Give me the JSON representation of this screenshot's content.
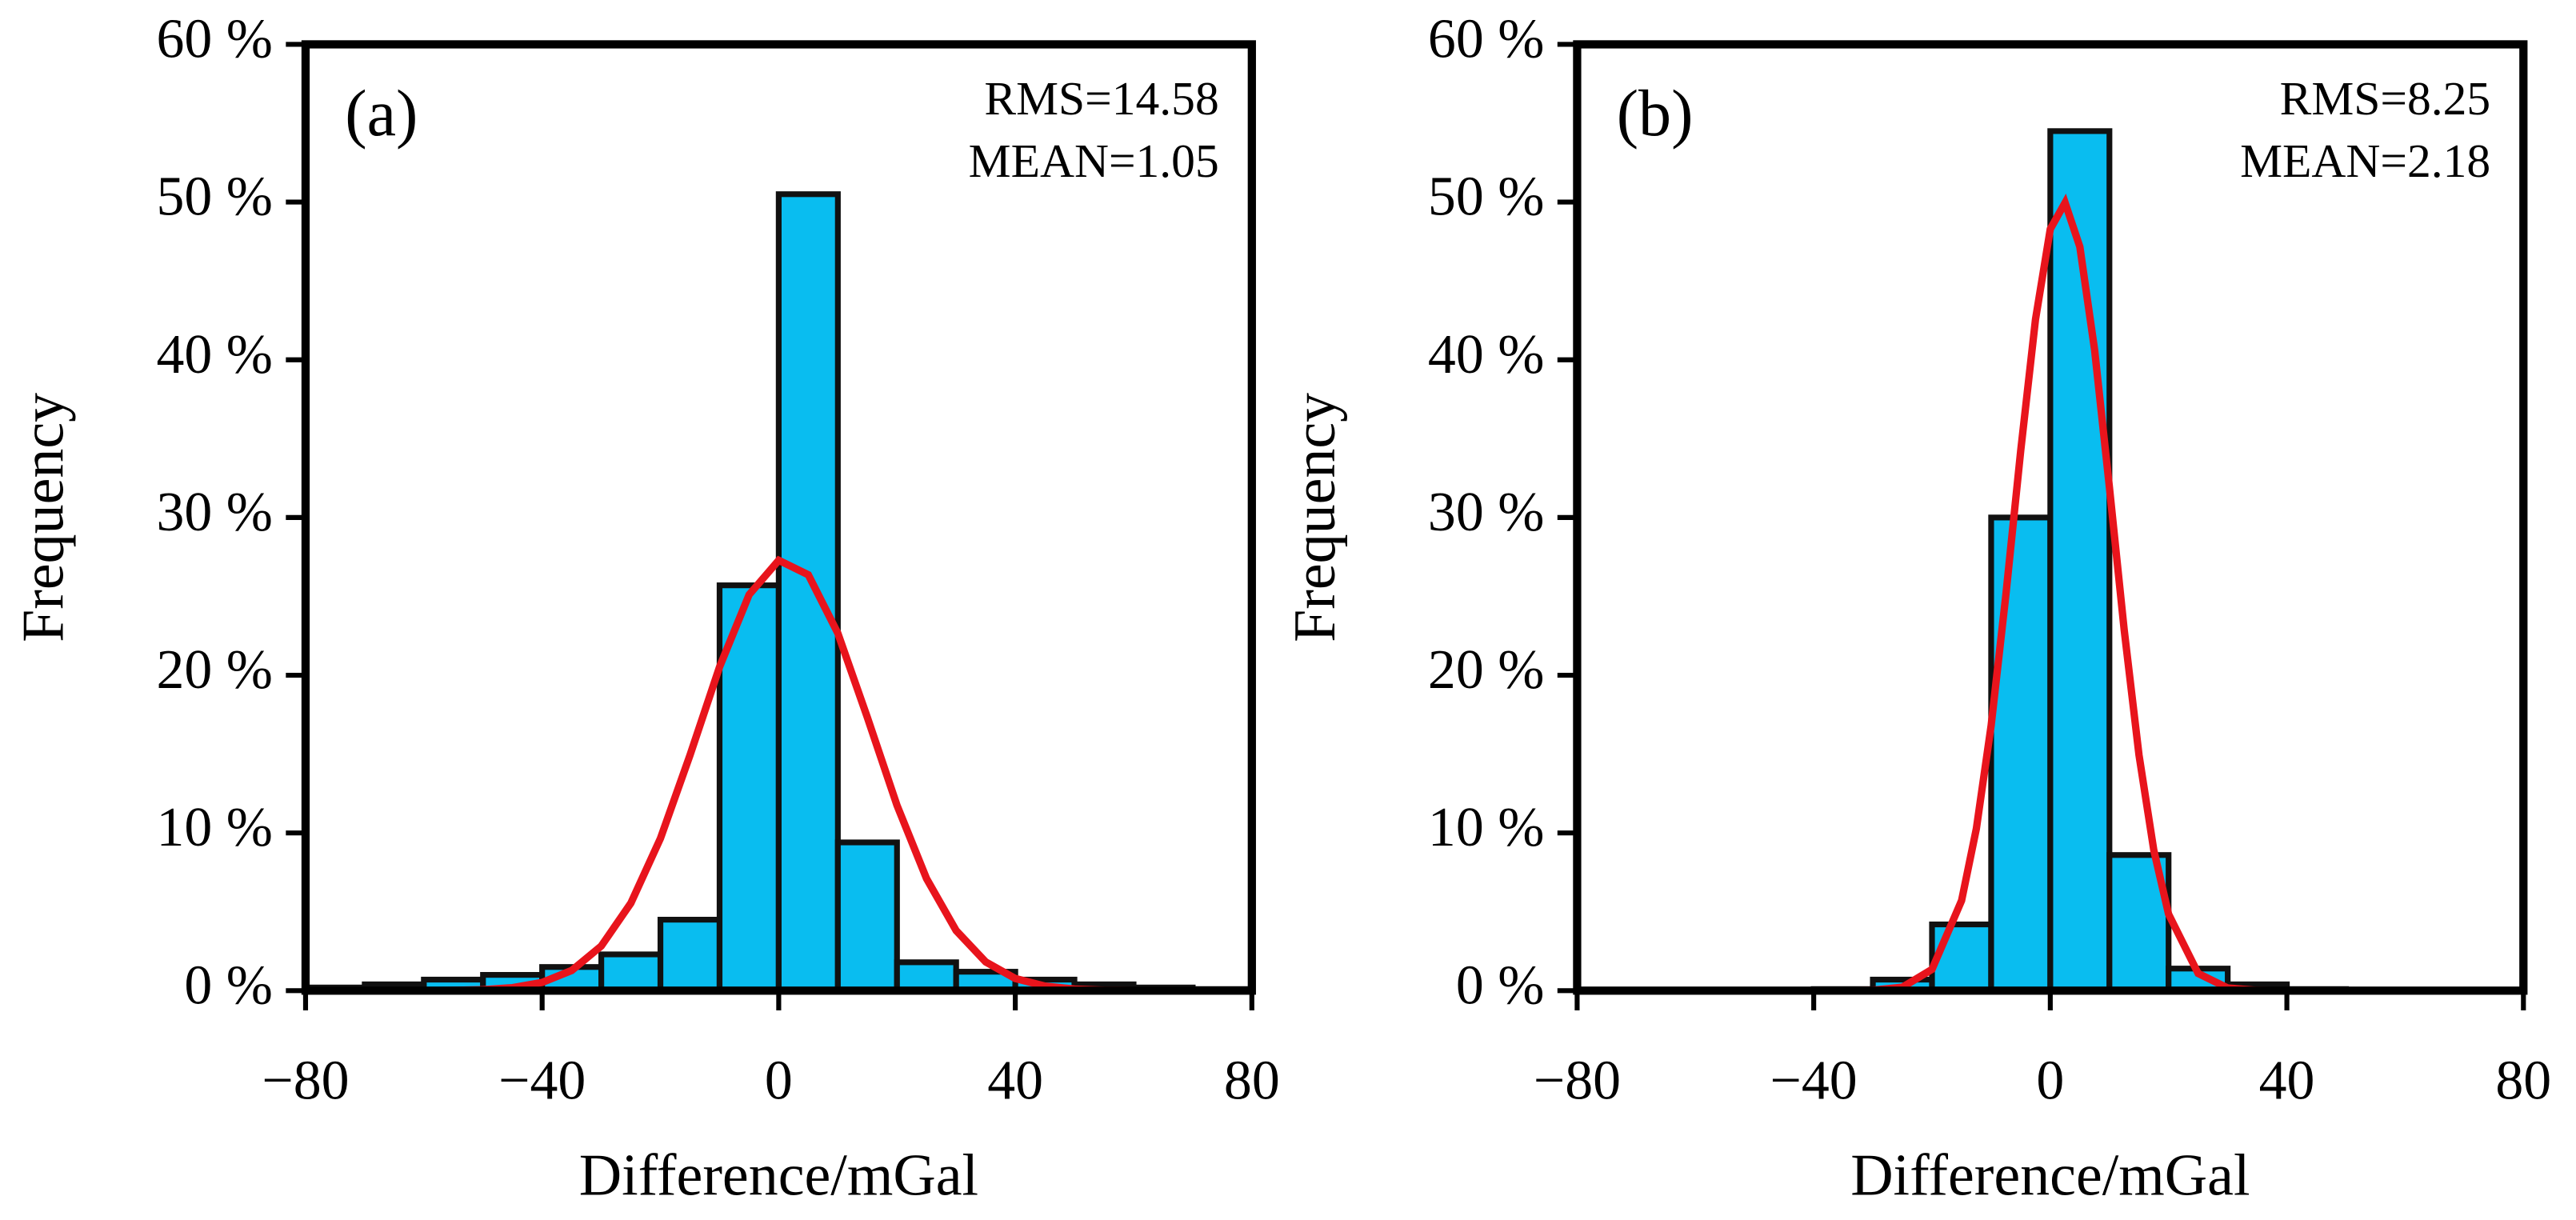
{
  "chart_data": [
    {
      "type": "histogram",
      "label": "(a)",
      "annotations": [
        "RMS=14.58",
        "MEAN=1.05"
      ],
      "xlabel": "Difference/mGal",
      "ylabel": "Frequency",
      "bins": [
        -80,
        -70,
        -60,
        -50,
        -40,
        -30,
        -20,
        -10,
        0,
        10,
        20,
        30,
        40,
        50,
        60,
        70,
        80
      ],
      "values": [
        0.2,
        0.4,
        0.7,
        1.0,
        1.5,
        2.3,
        4.5,
        25.7,
        50.5,
        9.4,
        1.8,
        1.2,
        0.7,
        0.4,
        0.2,
        0.1
      ],
      "color": "#09bdf0",
      "curve": {
        "color": "#e8141c",
        "x": [
          -80,
          -75,
          -70,
          -65,
          -60,
          -55,
          -50,
          -45,
          -40,
          -35,
          -30,
          -25,
          -20,
          -15,
          -10,
          -5,
          0,
          5,
          10,
          15,
          20,
          25,
          30,
          35,
          40,
          45,
          50,
          55,
          60,
          65,
          70,
          75,
          80
        ],
        "values": [
          0,
          0,
          0,
          0,
          0,
          0.02,
          0.06,
          0.19,
          0.52,
          1.28,
          2.83,
          5.55,
          9.65,
          14.93,
          20.53,
          25.11,
          27.29,
          26.37,
          22.66,
          17.31,
          11.75,
          7.1,
          3.81,
          1.82,
          0.77,
          0.29,
          0.1,
          0.03,
          0.01,
          0,
          0,
          0,
          0
        ]
      },
      "xlim": [
        -80,
        80
      ],
      "ylim": [
        0,
        60
      ],
      "xticks": [
        {
          "value": -80,
          "label": "−80"
        },
        {
          "value": -40,
          "label": "−40"
        },
        0,
        40,
        80
      ],
      "yticks": [
        {
          "value": 0,
          "label": "0 %"
        },
        {
          "value": 10,
          "label": "10 %"
        },
        {
          "value": 20,
          "label": "20 %"
        },
        {
          "value": 30,
          "label": "30 %"
        },
        {
          "value": 40,
          "label": "40 %"
        },
        {
          "value": 50,
          "label": "50 %"
        },
        {
          "value": 60,
          "label": "60 %"
        }
      ]
    },
    {
      "type": "histogram",
      "label": "(b)",
      "annotations": [
        "RMS=8.25",
        "MEAN=2.18"
      ],
      "xlabel": "Difference/mGal",
      "ylabel": "Frequency",
      "bins": [
        -80,
        -70,
        -60,
        -50,
        -40,
        -30,
        -20,
        -10,
        0,
        10,
        20,
        30,
        40,
        50,
        60,
        70,
        80
      ],
      "values": [
        0,
        0,
        0,
        0,
        0.1,
        0.7,
        4.2,
        30,
        54.5,
        8.6,
        1.4,
        0.4,
        0.1,
        0,
        0,
        0
      ],
      "color": "#09bdf0",
      "curve": {
        "color": "#e8141c",
        "x": [
          -80,
          -70,
          -60,
          -50,
          -40,
          -35,
          -30,
          -25,
          -20,
          -15,
          -12.5,
          -10,
          -7.5,
          -5,
          -2.5,
          0,
          2.5,
          5,
          7.5,
          10,
          12.5,
          15,
          17.5,
          20,
          25,
          30,
          35,
          40,
          50,
          60,
          70,
          80
        ],
        "values": [
          0,
          0,
          0,
          0,
          0,
          0,
          0.03,
          0.22,
          1.35,
          5.71,
          10.27,
          16.81,
          25.13,
          34.24,
          42.56,
          48.29,
          49.96,
          47.16,
          40.61,
          31.91,
          22.86,
          14.94,
          8.91,
          4.85,
          1.09,
          0.17,
          0.02,
          0,
          0,
          0,
          0,
          0
        ]
      },
      "xlim": [
        -80,
        80
      ],
      "ylim": [
        0,
        60
      ],
      "xticks": [
        {
          "value": -80,
          "label": "−80"
        },
        {
          "value": -40,
          "label": "−40"
        },
        0,
        40,
        80
      ],
      "yticks": [
        {
          "value": 0,
          "label": "0 %"
        },
        {
          "value": 10,
          "label": "10 %"
        },
        {
          "value": 20,
          "label": "20 %"
        },
        {
          "value": 30,
          "label": "30 %"
        },
        {
          "value": 40,
          "label": "40 %"
        },
        {
          "value": 50,
          "label": "50 %"
        },
        {
          "value": 60,
          "label": "60 %"
        }
      ]
    }
  ]
}
